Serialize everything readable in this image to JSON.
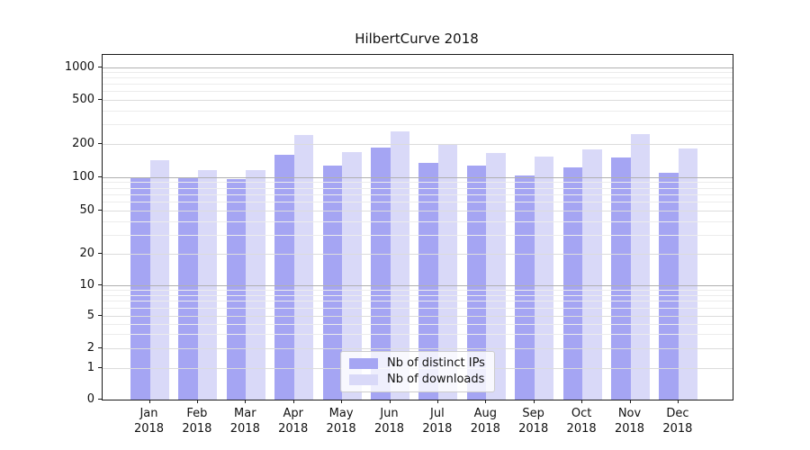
{
  "title": "HilbertCurve 2018",
  "chart_data": {
    "type": "bar",
    "title": "HilbertCurve 2018",
    "scale": "symlog",
    "grid": true,
    "legend_position": "lower center",
    "months": [
      "Jan",
      "Feb",
      "Mar",
      "Apr",
      "May",
      "Jun",
      "Jul",
      "Aug",
      "Sep",
      "Oct",
      "Nov",
      "Dec"
    ],
    "year": "2018",
    "categories": [
      "Jan 2018",
      "Feb 2018",
      "Mar 2018",
      "Apr 2018",
      "May 2018",
      "Jun 2018",
      "Jul 2018",
      "Aug 2018",
      "Sep 2018",
      "Oct 2018",
      "Nov 2018",
      "Dec 2018"
    ],
    "series": [
      {
        "name": "Nb of distinct IPs",
        "color": "#a5a5f3",
        "values": [
          100,
          97,
          95,
          160,
          126,
          187,
          135,
          126,
          102,
          122,
          150,
          108
        ]
      },
      {
        "name": "Nb of downloads",
        "color": "#d9d9f8",
        "values": [
          143,
          116,
          115,
          241,
          168,
          257,
          200,
          165,
          154,
          180,
          246,
          183
        ]
      }
    ],
    "y_ticks": [
      0,
      1,
      2,
      5,
      10,
      20,
      50,
      100,
      200,
      500,
      1000
    ],
    "y_tick_labels": [
      "0",
      "1",
      "2",
      "5",
      "10",
      "20",
      "50",
      "100",
      "200",
      "500",
      "1000"
    ],
    "ylim": [
      0,
      1300
    ]
  },
  "colors": {
    "bar_dark": "#a5a5f3",
    "bar_light": "#d9d9f8",
    "grid_major": "#b0b0b0",
    "grid_labeled": "#dcdcdc",
    "grid_minor": "#ececec",
    "spine": "#1a1a1a"
  }
}
